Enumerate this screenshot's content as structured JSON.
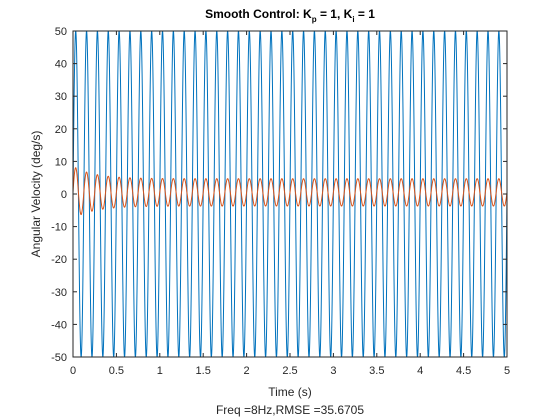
{
  "chart_data": {
    "type": "line",
    "title_parts": {
      "prefix": "Smooth Control: K",
      "sub1": "p",
      "middle": " = 1, K",
      "sub2": "i",
      "suffix": " = 1"
    },
    "xlabel": "Time (s)",
    "ylabel": "Angular Velocity (deg/s)",
    "caption": "Freq =8Hz,RMSE =35.6705",
    "xlim": [
      0,
      5
    ],
    "ylim": [
      -50,
      50
    ],
    "xticks": [
      0,
      0.5,
      1,
      1.5,
      2,
      2.5,
      3,
      3.5,
      4,
      4.5,
      5
    ],
    "xtick_labels": [
      "0",
      "0.5",
      "1",
      "1.5",
      "2",
      "2.5",
      "3",
      "3.5",
      "4",
      "4.5",
      "5"
    ],
    "yticks": [
      -50,
      -40,
      -30,
      -20,
      -10,
      0,
      10,
      20,
      30,
      40,
      50
    ],
    "ytick_labels": [
      "-50",
      "-40",
      "-30",
      "-20",
      "-10",
      "0",
      "10",
      "20",
      "30",
      "40",
      "50"
    ],
    "grid": false,
    "box": true,
    "series": [
      {
        "color": "#0072BD",
        "signal": "sine",
        "amplitude": 50,
        "frequency_hz": 8,
        "phase_deg": 0,
        "offset": 0
      },
      {
        "color": "#D95319",
        "signal": "damped-oscillation",
        "steady_amplitude": 4.2,
        "initial_peak": 8,
        "frequency_hz": 8,
        "offset": 0.5,
        "transient_time_constant_s": 0.25
      }
    ]
  }
}
